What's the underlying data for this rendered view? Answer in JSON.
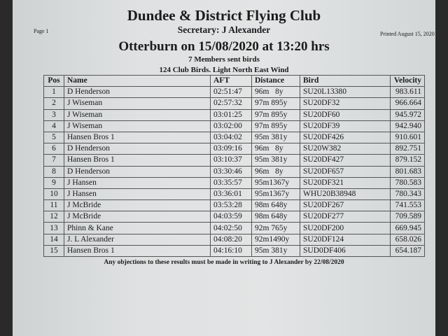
{
  "header": {
    "club": "Dundee & District Flying Club",
    "secretary": "Secretary: J Alexander",
    "page": "Page 1",
    "printed": "Printed August 15, 2020",
    "race": "Otterburn on 15/08/2020 at 13:20 hrs",
    "members": "7 Members sent birds",
    "birds": "124 Club Birds. Light North East Wind"
  },
  "table": {
    "columns": [
      "Pos",
      "Name",
      "AFT",
      "Distance",
      "Bird",
      "Velocity"
    ],
    "rows": [
      [
        "1",
        "D Henderson",
        "02:51:47",
        "96m   8y",
        "SU20L13380",
        "983.611"
      ],
      [
        "2",
        "J Wiseman",
        "02:57:32",
        "97m 895y",
        "SU20DF32",
        "966.664"
      ],
      [
        "3",
        "J Wiseman",
        "03:01:25",
        "97m 895y",
        "SU20DF60",
        "945.972"
      ],
      [
        "4",
        "J Wiseman",
        "03:02:00",
        "97m 895y",
        "SU20DF39",
        "942.940"
      ],
      [
        "5",
        "Hansen Bros 1",
        "03:04:02",
        "95m 381y",
        "SU20DF426",
        "910.601"
      ],
      [
        "6",
        "D Henderson",
        "03:09:16",
        "96m   8y",
        "SU20W382",
        "892.751"
      ],
      [
        "7",
        "Hansen Bros 1",
        "03:10:37",
        "95m 381y",
        "SU20DF427",
        "879.152"
      ],
      [
        "8",
        "D Henderson",
        "03:30:46",
        "96m   8y",
        "SU20DF657",
        "801.683"
      ],
      [
        "9",
        "J Hansen",
        "03:35:57",
        "95m1367y",
        "SU20DF321",
        "780.583"
      ],
      [
        "10",
        "J Hansen",
        "03:36:01",
        "95m1367y",
        "WHU20B38948",
        "780.343"
      ],
      [
        "11",
        "J McBride",
        "03:53:28",
        "98m 648y",
        "SU20DF267",
        "741.553"
      ],
      [
        "12",
        "J McBride",
        "04:03:59",
        "98m 648y",
        "SU20DF277",
        "709.589"
      ],
      [
        "13",
        "Phinn & Kane",
        "04:02:50",
        "92m 765y",
        "SU20DF200",
        "669.945"
      ],
      [
        "14",
        "J. L Alexander",
        "04:08:20",
        "92m1490y",
        "SU20DF124",
        "658.026"
      ],
      [
        "15",
        "Hansen Bros 1",
        "04:16:10",
        "95m 381y",
        "SUD0DF406",
        "654.187"
      ]
    ]
  },
  "footer": "Any objections to these results must be made in writing to J Alexander by 22/08/2020"
}
